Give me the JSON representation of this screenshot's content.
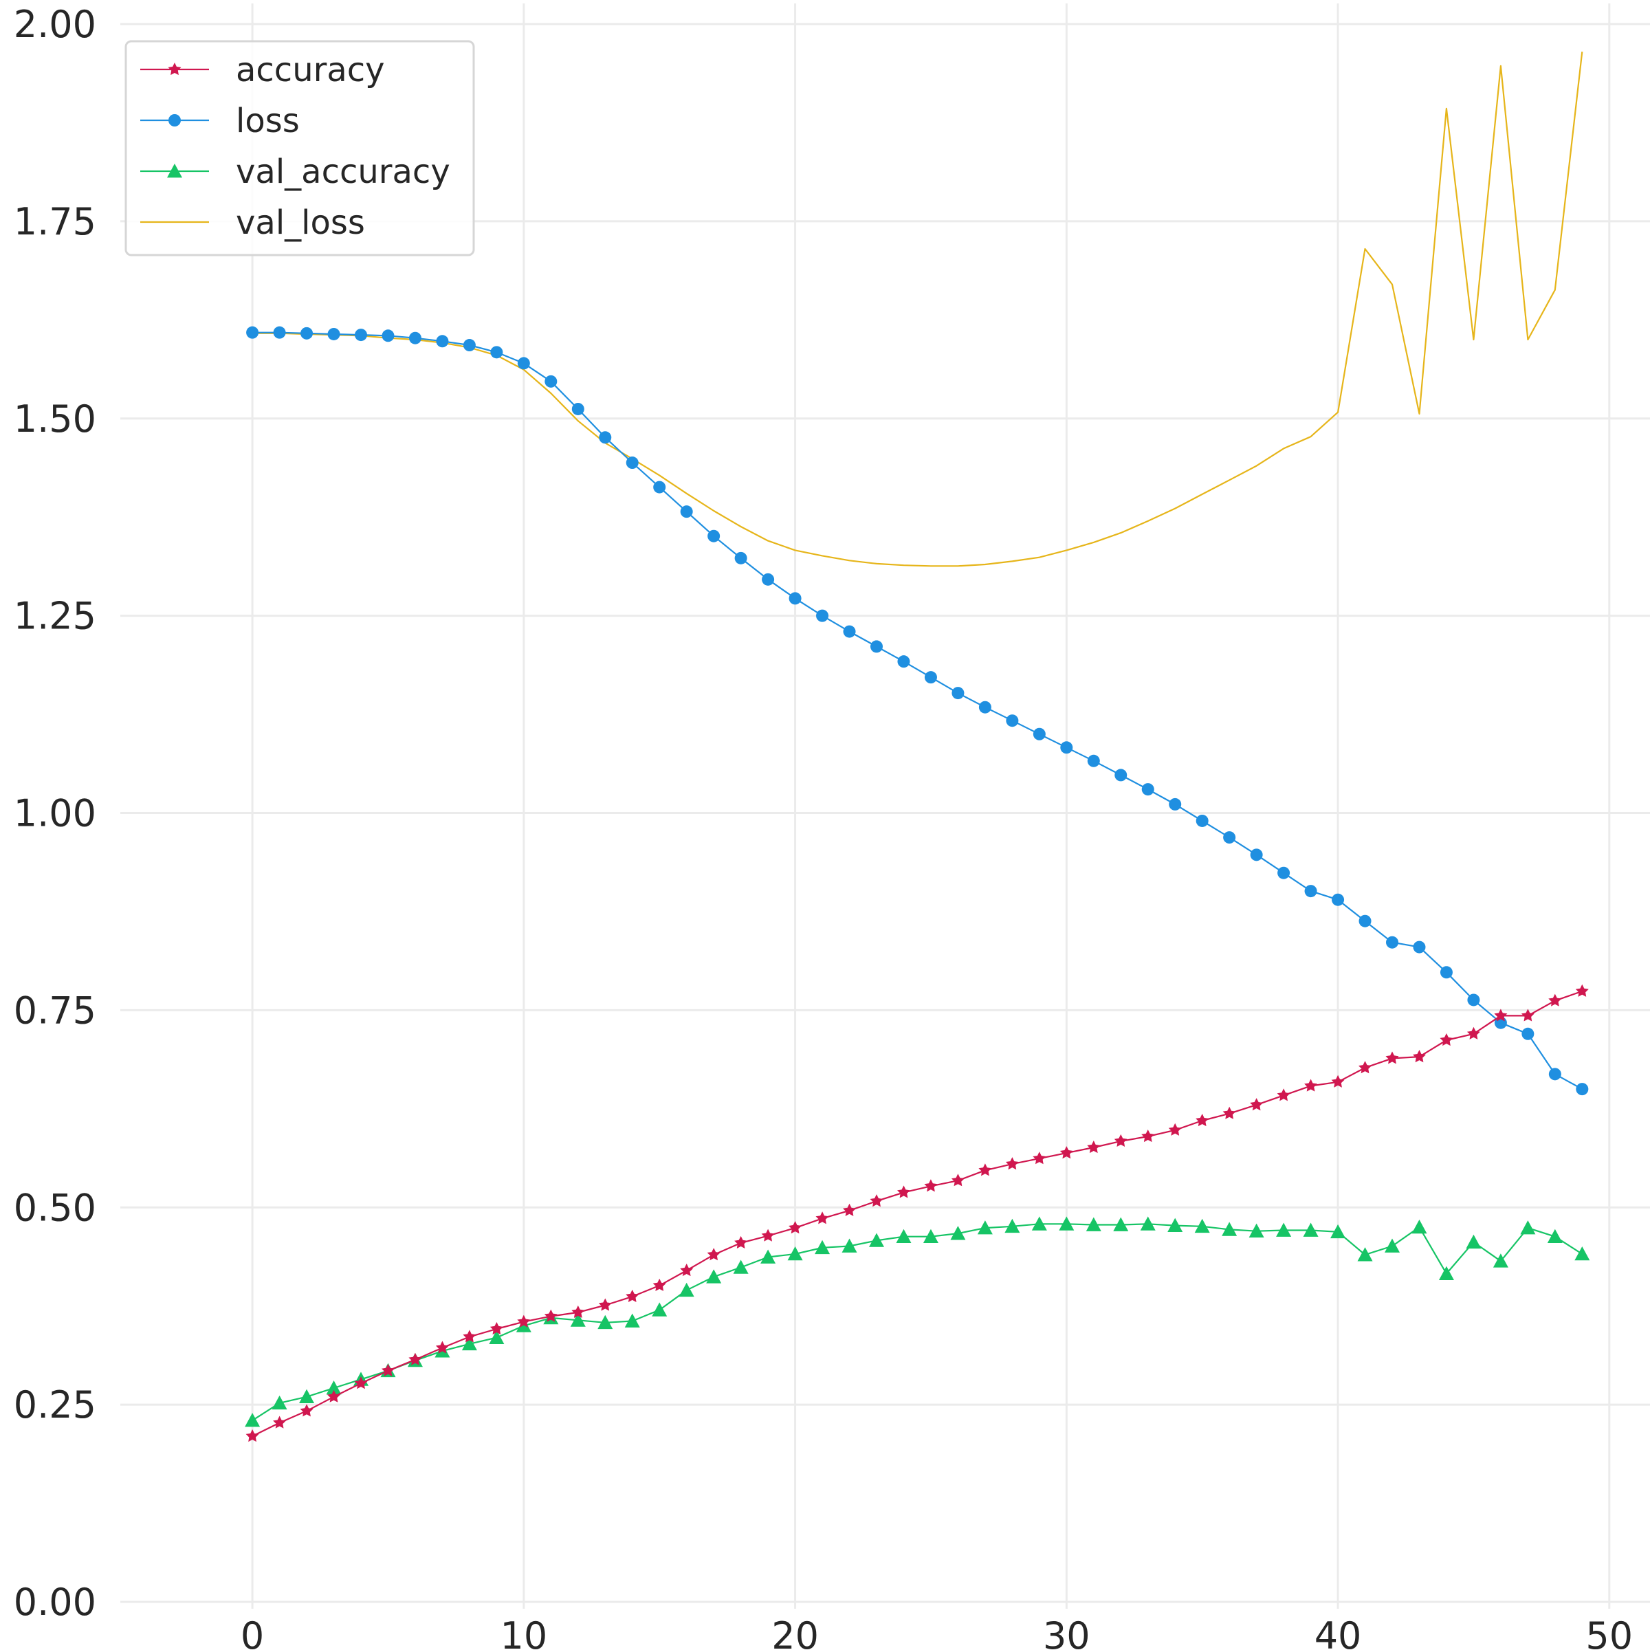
{
  "chart_data": {
    "type": "line",
    "title": "",
    "xlabel": "",
    "ylabel": "",
    "xlim": [
      -5.5,
      51.5
    ],
    "ylim": [
      0.0,
      2.0
    ],
    "xticks": [
      0,
      10,
      20,
      30,
      40,
      50
    ],
    "xtick_labels": [
      "0",
      "10",
      "20",
      "30",
      "40",
      "50"
    ],
    "yticks": [
      0.0,
      0.25,
      0.5,
      0.75,
      1.0,
      1.25,
      1.5,
      1.75,
      2.0
    ],
    "ytick_labels": [
      "0.00",
      "0.25",
      "0.50",
      "0.75",
      "1.00",
      "1.25",
      "1.50",
      "1.75",
      "2.00"
    ],
    "grid": true,
    "legend_position": "top-left",
    "x": [
      0,
      1,
      2,
      3,
      4,
      5,
      6,
      7,
      8,
      9,
      10,
      11,
      12,
      13,
      14,
      15,
      16,
      17,
      18,
      19,
      20,
      21,
      22,
      23,
      24,
      25,
      26,
      27,
      28,
      29,
      30,
      31,
      32,
      33,
      34,
      35,
      36,
      37,
      38,
      39,
      40,
      41,
      42,
      43,
      44,
      45,
      46,
      47,
      48,
      49
    ],
    "series": [
      {
        "name": "accuracy",
        "color": "#d0174f",
        "marker": "star",
        "values": [
          0.21,
          0.227,
          0.242,
          0.26,
          0.277,
          0.293,
          0.307,
          0.322,
          0.336,
          0.346,
          0.355,
          0.362,
          0.367,
          0.376,
          0.387,
          0.401,
          0.42,
          0.44,
          0.455,
          0.464,
          0.474,
          0.486,
          0.496,
          0.508,
          0.519,
          0.527,
          0.534,
          0.547,
          0.555,
          0.562,
          0.569,
          0.576,
          0.584,
          0.59,
          0.598,
          0.61,
          0.619,
          0.63,
          0.642,
          0.654,
          0.659,
          0.677,
          0.689,
          0.691,
          0.712,
          0.72,
          0.743,
          0.743,
          0.762,
          0.774
        ]
      },
      {
        "name": "loss",
        "color": "#1f8fe0",
        "marker": "circle",
        "values": [
          1.609,
          1.609,
          1.608,
          1.607,
          1.606,
          1.605,
          1.602,
          1.598,
          1.593,
          1.584,
          1.57,
          1.547,
          1.512,
          1.476,
          1.444,
          1.413,
          1.382,
          1.351,
          1.323,
          1.296,
          1.272,
          1.25,
          1.23,
          1.211,
          1.192,
          1.172,
          1.152,
          1.134,
          1.117,
          1.1,
          1.083,
          1.066,
          1.048,
          1.03,
          1.011,
          0.99,
          0.969,
          0.947,
          0.924,
          0.901,
          0.89,
          0.863,
          0.836,
          0.83,
          0.798,
          0.763,
          0.734,
          0.72,
          0.669,
          0.65
        ]
      },
      {
        "name": "val_accuracy",
        "color": "#16c465",
        "marker": "triangle",
        "values": [
          0.23,
          0.252,
          0.26,
          0.271,
          0.282,
          0.293,
          0.306,
          0.318,
          0.327,
          0.335,
          0.35,
          0.36,
          0.357,
          0.354,
          0.356,
          0.37,
          0.395,
          0.412,
          0.424,
          0.437,
          0.441,
          0.449,
          0.451,
          0.458,
          0.463,
          0.463,
          0.467,
          0.474,
          0.476,
          0.479,
          0.479,
          0.478,
          0.478,
          0.479,
          0.477,
          0.476,
          0.472,
          0.47,
          0.471,
          0.471,
          0.469,
          0.44,
          0.451,
          0.475,
          0.416,
          0.456,
          0.432,
          0.474,
          0.463,
          0.441
        ]
      },
      {
        "name": "val_loss",
        "color": "#e6b51a",
        "marker": "none",
        "values": [
          1.608,
          1.608,
          1.607,
          1.606,
          1.605,
          1.602,
          1.6,
          1.596,
          1.59,
          1.58,
          1.562,
          1.532,
          1.497,
          1.469,
          1.449,
          1.428,
          1.405,
          1.383,
          1.363,
          1.345,
          1.333,
          1.326,
          1.32,
          1.316,
          1.314,
          1.313,
          1.313,
          1.315,
          1.319,
          1.324,
          1.333,
          1.343,
          1.355,
          1.37,
          1.386,
          1.404,
          1.422,
          1.44,
          1.462,
          1.477,
          1.508,
          1.715,
          1.67,
          1.506,
          1.893,
          1.6,
          1.947,
          1.6,
          1.663,
          1.965
        ]
      }
    ]
  }
}
